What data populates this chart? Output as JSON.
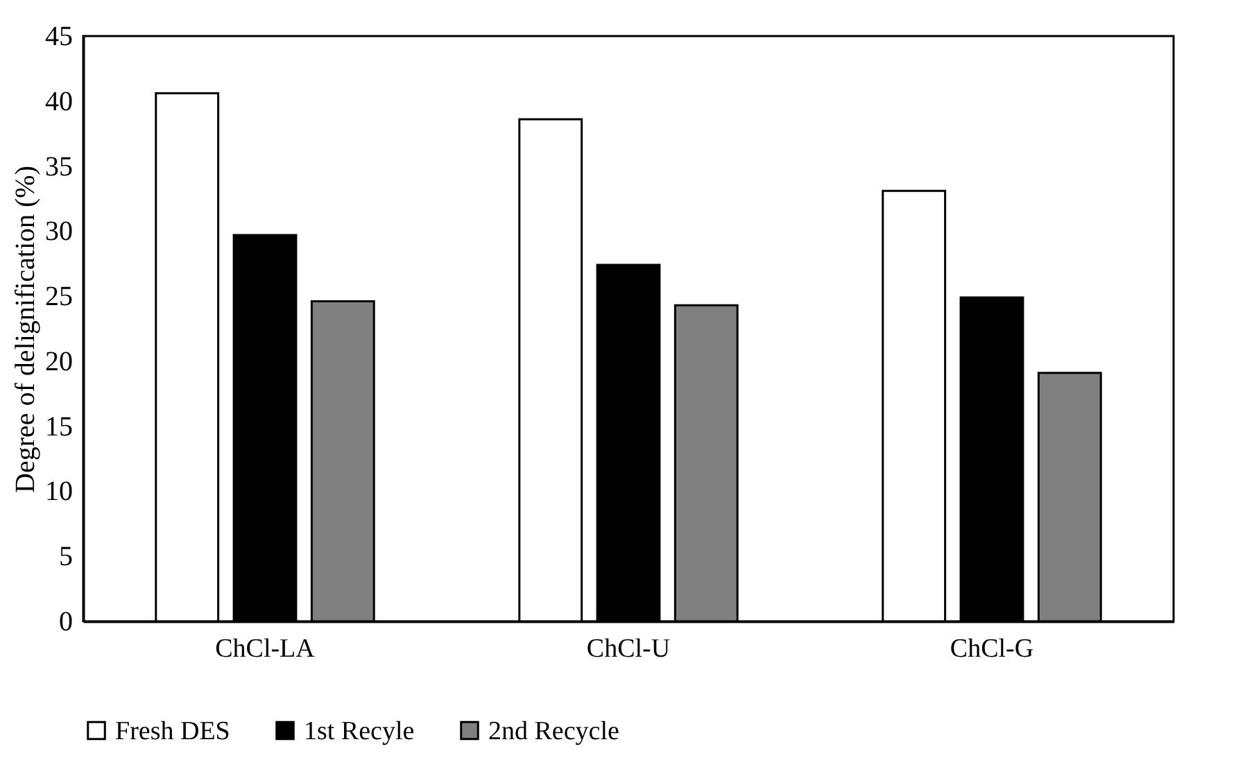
{
  "chart_data": {
    "type": "bar",
    "ylabel": "Degree of delignification (%)",
    "categories": [
      "ChCl-LA",
      "ChCl-U",
      "ChCl-G"
    ],
    "series": [
      {
        "name": "Fresh DES",
        "color": "#ffffff",
        "values": [
          40.6,
          38.6,
          33.1
        ]
      },
      {
        "name": "1st Recyle",
        "color": "#000000",
        "values": [
          29.7,
          27.4,
          24.9
        ]
      },
      {
        "name": "2nd Recycle",
        "color": "#808080",
        "values": [
          24.6,
          24.3,
          19.1
        ]
      }
    ],
    "ylim": [
      0,
      45
    ],
    "yticks": [
      0,
      5,
      10,
      15,
      20,
      25,
      30,
      35,
      40,
      45
    ],
    "grid": false,
    "legend": "bottom"
  }
}
